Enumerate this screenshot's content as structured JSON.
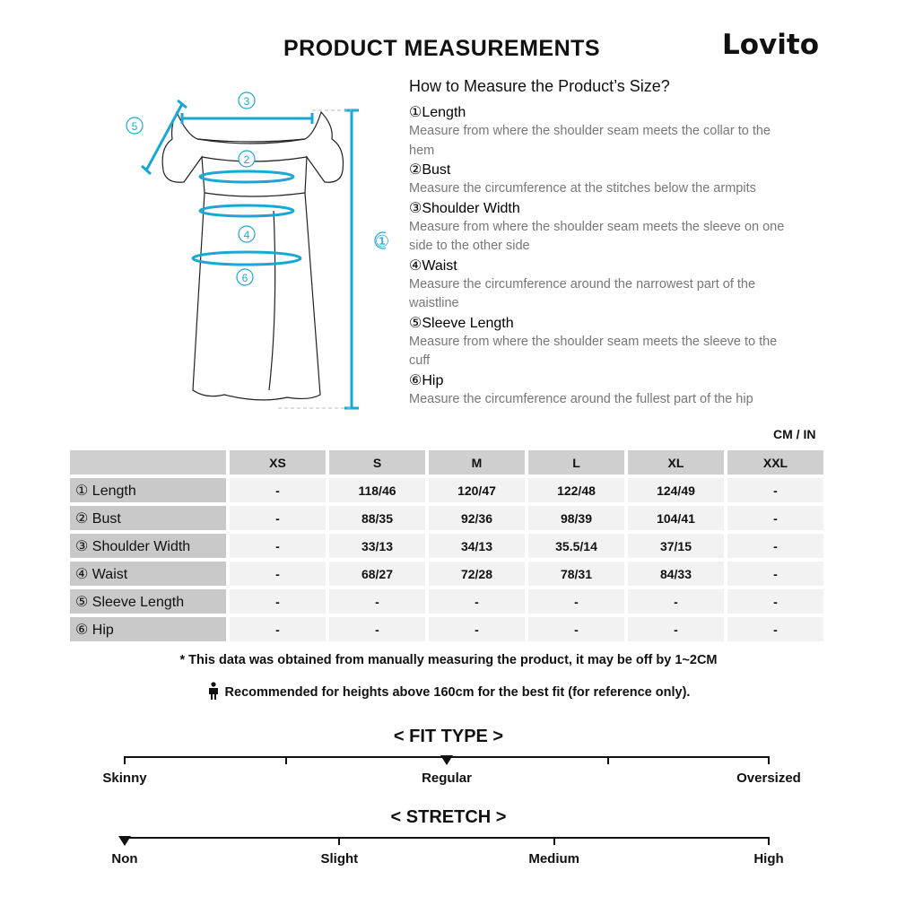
{
  "header": {
    "title": "PRODUCT MEASUREMENTS",
    "brand": "Lovito"
  },
  "diagram": {
    "labels": [
      "①",
      "②",
      "③",
      "④",
      "⑤",
      "⑥"
    ],
    "accent": "#1aa7d6"
  },
  "guide": {
    "heading": "How to Measure the Product’s Size?",
    "items": [
      {
        "name": "①Length",
        "desc": "Measure from where the shoulder seam meets the collar to the hem"
      },
      {
        "name": "②Bust",
        "desc": "Measure the circumference at the stitches below the armpits"
      },
      {
        "name": "③Shoulder Width",
        "desc": "Measure from where the shoulder seam meets the sleeve on one side to the other side"
      },
      {
        "name": "④Waist",
        "desc": "Measure the circumference around the narrowest part of the waistline"
      },
      {
        "name": "⑤Sleeve Length",
        "desc": "Measure from where the shoulder seam meets the sleeve to the cuff"
      },
      {
        "name": "⑥Hip",
        "desc": "Measure the circumference around the fullest part of the hip"
      }
    ]
  },
  "table": {
    "unit": "CM / IN",
    "sizes": [
      "XS",
      "S",
      "M",
      "L",
      "XL",
      "XXL"
    ],
    "rows": [
      {
        "label": "① Length",
        "values": [
          "-",
          "118/46",
          "120/47",
          "122/48",
          "124/49",
          "-"
        ]
      },
      {
        "label": "② Bust",
        "values": [
          "-",
          "88/35",
          "92/36",
          "98/39",
          "104/41",
          "-"
        ]
      },
      {
        "label": "③ Shoulder Width",
        "values": [
          "-",
          "33/13",
          "34/13",
          "35.5/14",
          "37/15",
          "-"
        ]
      },
      {
        "label": "④ Waist",
        "values": [
          "-",
          "68/27",
          "72/28",
          "78/31",
          "84/33",
          "-"
        ]
      },
      {
        "label": "⑤ Sleeve Length",
        "values": [
          "-",
          "-",
          "-",
          "-",
          "-",
          "-"
        ]
      },
      {
        "label": "⑥ Hip",
        "values": [
          "-",
          "-",
          "-",
          "-",
          "-",
          "-"
        ]
      }
    ]
  },
  "notes": {
    "disclaimer": "* This data was obtained from manually measuring the product, it may be off by 1~2CM",
    "height": "Recommended for heights above 160cm for the best fit (for reference only)."
  },
  "fit_type": {
    "title": "< FIT TYPE >",
    "labels": [
      "Skinny",
      "Regular",
      "Oversized"
    ],
    "ticks": 5,
    "selected_position": 0.5,
    "selected": "Regular"
  },
  "stretch": {
    "title": "< STRETCH >",
    "labels": [
      "Non",
      "Slight",
      "Medium",
      "High"
    ],
    "selected_position": 0,
    "selected": "Non"
  }
}
